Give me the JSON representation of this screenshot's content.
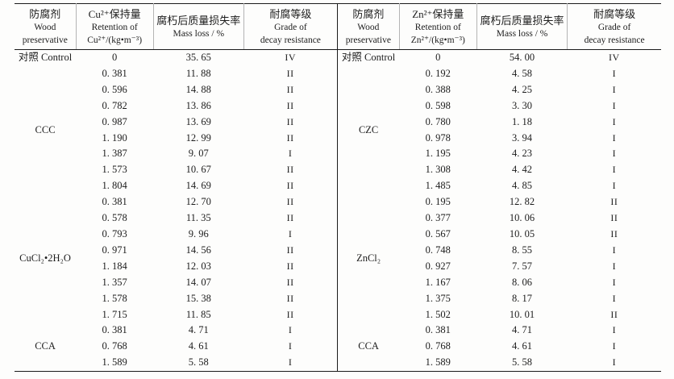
{
  "page": {
    "background": "#fdfdfc",
    "text_color": "#1d1d1d",
    "border_color": "#1a1a1a"
  },
  "tables": [
    {
      "id": "copper-preservatives",
      "headers": [
        {
          "lines": [
            "防腐剂",
            "Wood",
            "preservative"
          ]
        },
        {
          "lines": [
            "Cu²⁺保持量",
            "Retention of",
            "Cu²⁺/(kg•m⁻³)"
          ]
        },
        {
          "lines": [
            "腐朽后质量损失率",
            "Mass loss / %"
          ]
        },
        {
          "lines": [
            "耐腐等级",
            "Grade of",
            "decay resistance"
          ]
        }
      ],
      "groups": [
        {
          "label": "对照 Control",
          "rows": [
            [
              "0",
              "35. 65",
              "IV"
            ]
          ]
        },
        {
          "label": "CCC",
          "rows": [
            [
              "0. 381",
              "11. 88",
              "II"
            ],
            [
              "0. 596",
              "14. 88",
              "II"
            ],
            [
              "0. 782",
              "13. 86",
              "II"
            ],
            [
              "0. 987",
              "13. 69",
              "II"
            ],
            [
              "1. 190",
              "12. 99",
              "II"
            ],
            [
              "1. 387",
              "9. 07",
              "I"
            ],
            [
              "1. 573",
              "10. 67",
              "II"
            ],
            [
              "1. 804",
              "14. 69",
              "II"
            ]
          ]
        },
        {
          "label": "CuCl₂•2H₂O",
          "rows": [
            [
              "0. 381",
              "12. 70",
              "II"
            ],
            [
              "0. 578",
              "11. 35",
              "II"
            ],
            [
              "0. 793",
              "9. 96",
              "I"
            ],
            [
              "0. 971",
              "14. 56",
              "II"
            ],
            [
              "1. 184",
              "12. 03",
              "II"
            ],
            [
              "1. 357",
              "14. 07",
              "II"
            ],
            [
              "1. 578",
              "15. 38",
              "II"
            ],
            [
              "1. 715",
              "11. 85",
              "II"
            ]
          ]
        },
        {
          "label": "CCA",
          "rows": [
            [
              "0. 381",
              "4. 71",
              "I"
            ],
            [
              "0. 768",
              "4. 61",
              "I"
            ],
            [
              "1. 589",
              "5. 58",
              "I"
            ]
          ]
        }
      ]
    },
    {
      "id": "zinc-preservatives",
      "headers": [
        {
          "lines": [
            "防腐剂",
            "Wood",
            "preservative"
          ]
        },
        {
          "lines": [
            "Zn²⁺保持量",
            "Retention of",
            "Zn²⁺/(kg•m⁻³)"
          ]
        },
        {
          "lines": [
            "腐朽后质量损失率",
            "Mass loss / %"
          ]
        },
        {
          "lines": [
            "耐腐等级",
            "Grade of",
            "decay resistance"
          ]
        }
      ],
      "groups": [
        {
          "label": "对照 Control",
          "rows": [
            [
              "0",
              "54. 00",
              "IV"
            ]
          ]
        },
        {
          "label": "CZC",
          "rows": [
            [
              "0. 192",
              "4. 58",
              "I"
            ],
            [
              "0. 388",
              "4. 25",
              "I"
            ],
            [
              "0. 598",
              "3. 30",
              "I"
            ],
            [
              "0. 780",
              "1. 18",
              "I"
            ],
            [
              "0. 978",
              "3. 94",
              "I"
            ],
            [
              "1. 195",
              "4. 23",
              "I"
            ],
            [
              "1. 308",
              "4. 42",
              "I"
            ],
            [
              "1. 485",
              "4. 85",
              "I"
            ]
          ]
        },
        {
          "label": "ZnCl₂",
          "rows": [
            [
              "0. 195",
              "12. 82",
              "II"
            ],
            [
              "0. 377",
              "10. 06",
              "II"
            ],
            [
              "0. 567",
              "10. 05",
              "II"
            ],
            [
              "0. 748",
              "8. 55",
              "I"
            ],
            [
              "0. 927",
              "7. 57",
              "I"
            ],
            [
              "1. 167",
              "8. 06",
              "I"
            ],
            [
              "1. 375",
              "8. 17",
              "I"
            ],
            [
              "1. 502",
              "10. 01",
              "II"
            ]
          ]
        },
        {
          "label": "CCA",
          "rows": [
            [
              "0. 381",
              "4. 71",
              "I"
            ],
            [
              "0. 768",
              "4. 61",
              "I"
            ],
            [
              "1. 589",
              "5. 58",
              "I"
            ]
          ]
        }
      ]
    }
  ]
}
